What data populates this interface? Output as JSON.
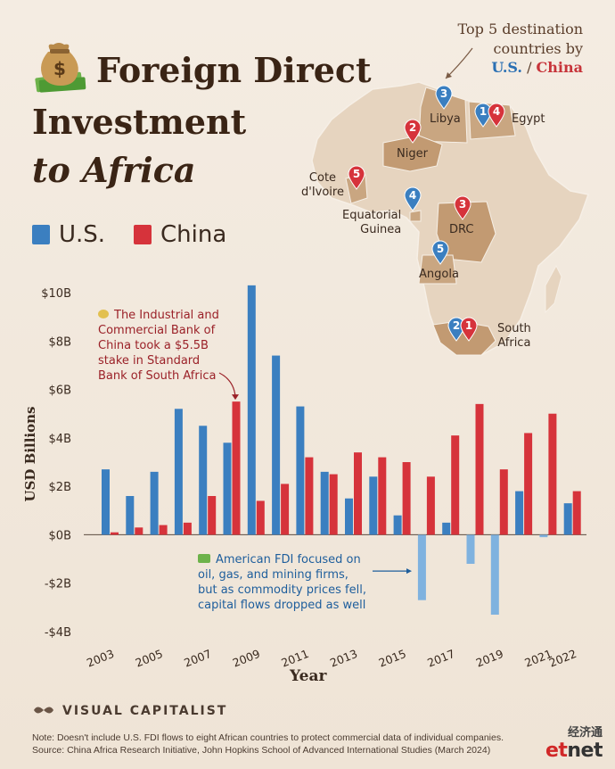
{
  "title": {
    "line1": "Foreign Direct",
    "line2": "Investment",
    "line3": "to Africa"
  },
  "legend": {
    "us": "U.S.",
    "china": "China"
  },
  "top_note": {
    "line1": "Top 5 destination",
    "line2": "countries by",
    "us": "U.S.",
    "sep": " / ",
    "china": "China"
  },
  "map": {
    "labels": {
      "libya": "Libya",
      "egypt": "Egypt",
      "niger": "Niger",
      "cote_l1": "Cote",
      "cote_l2": "d'Ivoire",
      "eqg_l1": "Equatorial",
      "eqg_l2": "Guinea",
      "drc": "DRC",
      "angola": "Angola",
      "sa_l1": "South",
      "sa_l2": "Africa"
    },
    "pins": [
      {
        "country": "Libya",
        "series": "U.S.",
        "rank": "3"
      },
      {
        "country": "Egypt",
        "series": "U.S.",
        "rank": "1"
      },
      {
        "country": "Egypt",
        "series": "China",
        "rank": "4"
      },
      {
        "country": "Niger",
        "series": "China",
        "rank": "2"
      },
      {
        "country": "Cote d'Ivoire",
        "series": "China",
        "rank": "5"
      },
      {
        "country": "Equatorial Guinea",
        "series": "U.S.",
        "rank": "4"
      },
      {
        "country": "DRC",
        "series": "China",
        "rank": "3"
      },
      {
        "country": "Angola",
        "series": "U.S.",
        "rank": "5"
      },
      {
        "country": "South Africa",
        "series": "U.S.",
        "rank": "2"
      },
      {
        "country": "South Africa",
        "series": "China",
        "rank": "1"
      }
    ]
  },
  "annotations": {
    "china": {
      "l1": "The Industrial and",
      "l2": "Commercial Bank of",
      "l3": "China took a $5.5B",
      "l4": "stake in Standard",
      "l5": "Bank of South Africa"
    },
    "us": {
      "l1": "American FDI focused on",
      "l2": "oil, gas, and mining firms,",
      "l3": "but as commodity prices fell,",
      "l4": "capital flows dropped as well"
    }
  },
  "brand": "VISUAL CAPITALIST",
  "footer": {
    "note": "Note: Doesn't include U.S. FDI flows to eight African countries to protect commercial data of individual companies.",
    "source": "Source: China Africa Research Initiative, John Hopkins School of Advanced International Studies (March 2024)"
  },
  "watermark": {
    "cn": "经济通",
    "en_e": "et",
    "en_rest": "net"
  },
  "colors": {
    "us": "#3b7fc0",
    "china": "#d6333b",
    "us_neg": "#7fb2df",
    "bg": "#f2e9de"
  },
  "chart_data": {
    "type": "bar",
    "xlabel": "Year",
    "ylabel": "USD Billions",
    "ylim": [
      -4,
      10
    ],
    "yticks": [
      -4,
      -2,
      0,
      2,
      4,
      6,
      8,
      10
    ],
    "ytick_labels": [
      "-$4B",
      "-$2B",
      "$0B",
      "$2B",
      "$4B",
      "$6B",
      "$8B",
      "$10B"
    ],
    "categories": [
      "2003",
      "2004",
      "2005",
      "2006",
      "2007",
      "2008",
      "2009",
      "2010",
      "2011",
      "2012",
      "2013",
      "2014",
      "2015",
      "2016",
      "2017",
      "2018",
      "2019",
      "2020",
      "2021",
      "2022"
    ],
    "xtick_labels": [
      "2003",
      "",
      "2005",
      "",
      "2007",
      "",
      "2009",
      "",
      "2011",
      "",
      "2013",
      "",
      "2015",
      "",
      "2017",
      "",
      "2019",
      "",
      "2021",
      "2022"
    ],
    "series": [
      {
        "name": "U.S.",
        "values": [
          2.7,
          1.6,
          2.6,
          5.2,
          4.5,
          3.8,
          10.3,
          7.4,
          5.3,
          2.6,
          1.5,
          2.4,
          0.8,
          -2.7,
          0.5,
          -1.2,
          -3.3,
          1.8,
          -0.1,
          1.3
        ]
      },
      {
        "name": "China",
        "values": [
          0.1,
          0.3,
          0.4,
          0.5,
          1.6,
          5.5,
          1.4,
          2.1,
          3.2,
          2.5,
          3.4,
          3.2,
          3.0,
          2.4,
          4.1,
          5.4,
          2.7,
          4.2,
          5.0,
          1.8
        ]
      }
    ],
    "grid": false,
    "legend_position": "top-left"
  }
}
